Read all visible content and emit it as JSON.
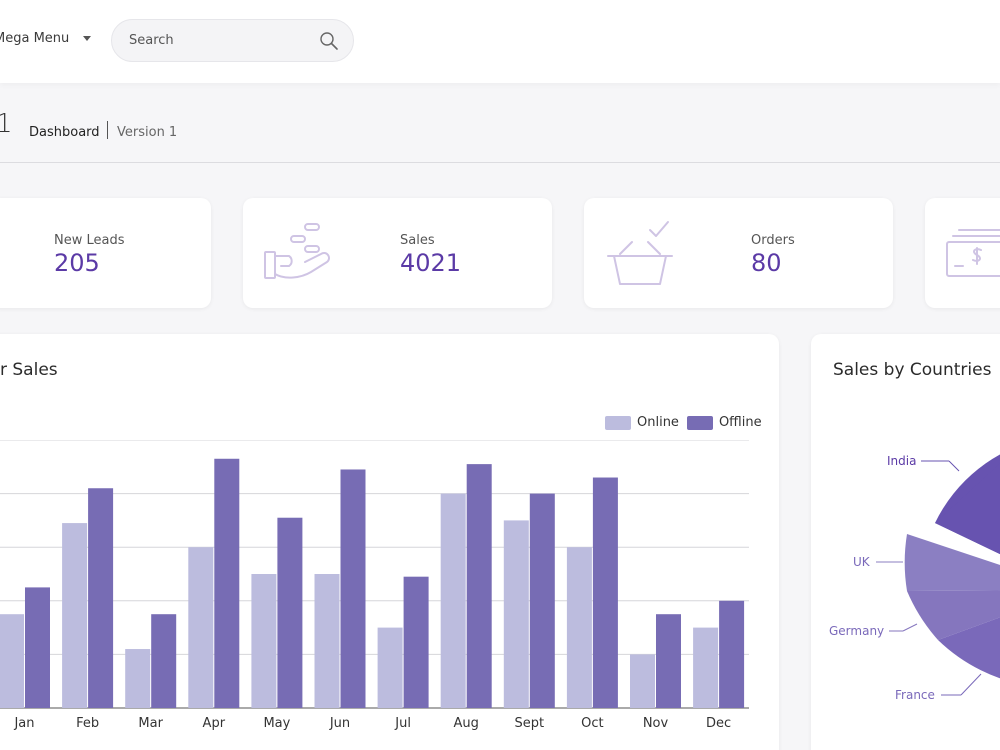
{
  "header": {
    "mega_menu_label": "Mega Menu",
    "search_placeholder": "Search"
  },
  "breadcrumb": {
    "title": "1",
    "active": "Dashboard",
    "version": "Version 1"
  },
  "stats": [
    {
      "label": "New Leads",
      "value": "205",
      "icon": "leads-icon"
    },
    {
      "label": "Sales",
      "value": "4021",
      "icon": "hand-coins-icon"
    },
    {
      "label": "Orders",
      "value": "80",
      "icon": "basket-check-icon"
    },
    {
      "label": "",
      "value": "",
      "icon": "money-bills-icon"
    }
  ],
  "colors": {
    "accent": "#5b3aa6",
    "online": "#bcbcde",
    "offline": "#776cb4",
    "pie_india": "#6753b0",
    "pie_uk": "#8b7fc2",
    "pie_germany": "#8576be",
    "pie_france": "#7a69ba"
  },
  "sales_panel": {
    "title": "r Sales"
  },
  "countries_panel": {
    "title": "Sales by Countries",
    "labels": [
      "India",
      "UK",
      "Germany",
      "France"
    ]
  },
  "chart_data": [
    {
      "type": "bar",
      "title": "r Sales",
      "categories": [
        "Jan",
        "Feb",
        "Mar",
        "Apr",
        "May",
        "Jun",
        "Jul",
        "Aug",
        "Sept",
        "Oct",
        "Nov",
        "Dec"
      ],
      "series": [
        {
          "name": "Online",
          "values": [
            35,
            69,
            22,
            60,
            50,
            50,
            30,
            80,
            70,
            60,
            20,
            30
          ]
        },
        {
          "name": "Offline",
          "values": [
            45,
            82,
            35,
            93,
            71,
            89,
            49,
            91,
            80,
            86,
            35,
            40
          ]
        }
      ],
      "ylim": [
        0,
        100
      ],
      "grid": true,
      "legend": "top-right"
    },
    {
      "type": "pie",
      "title": "Sales by Countries",
      "categories": [
        "India",
        "UK",
        "Germany",
        "France"
      ]
    }
  ]
}
